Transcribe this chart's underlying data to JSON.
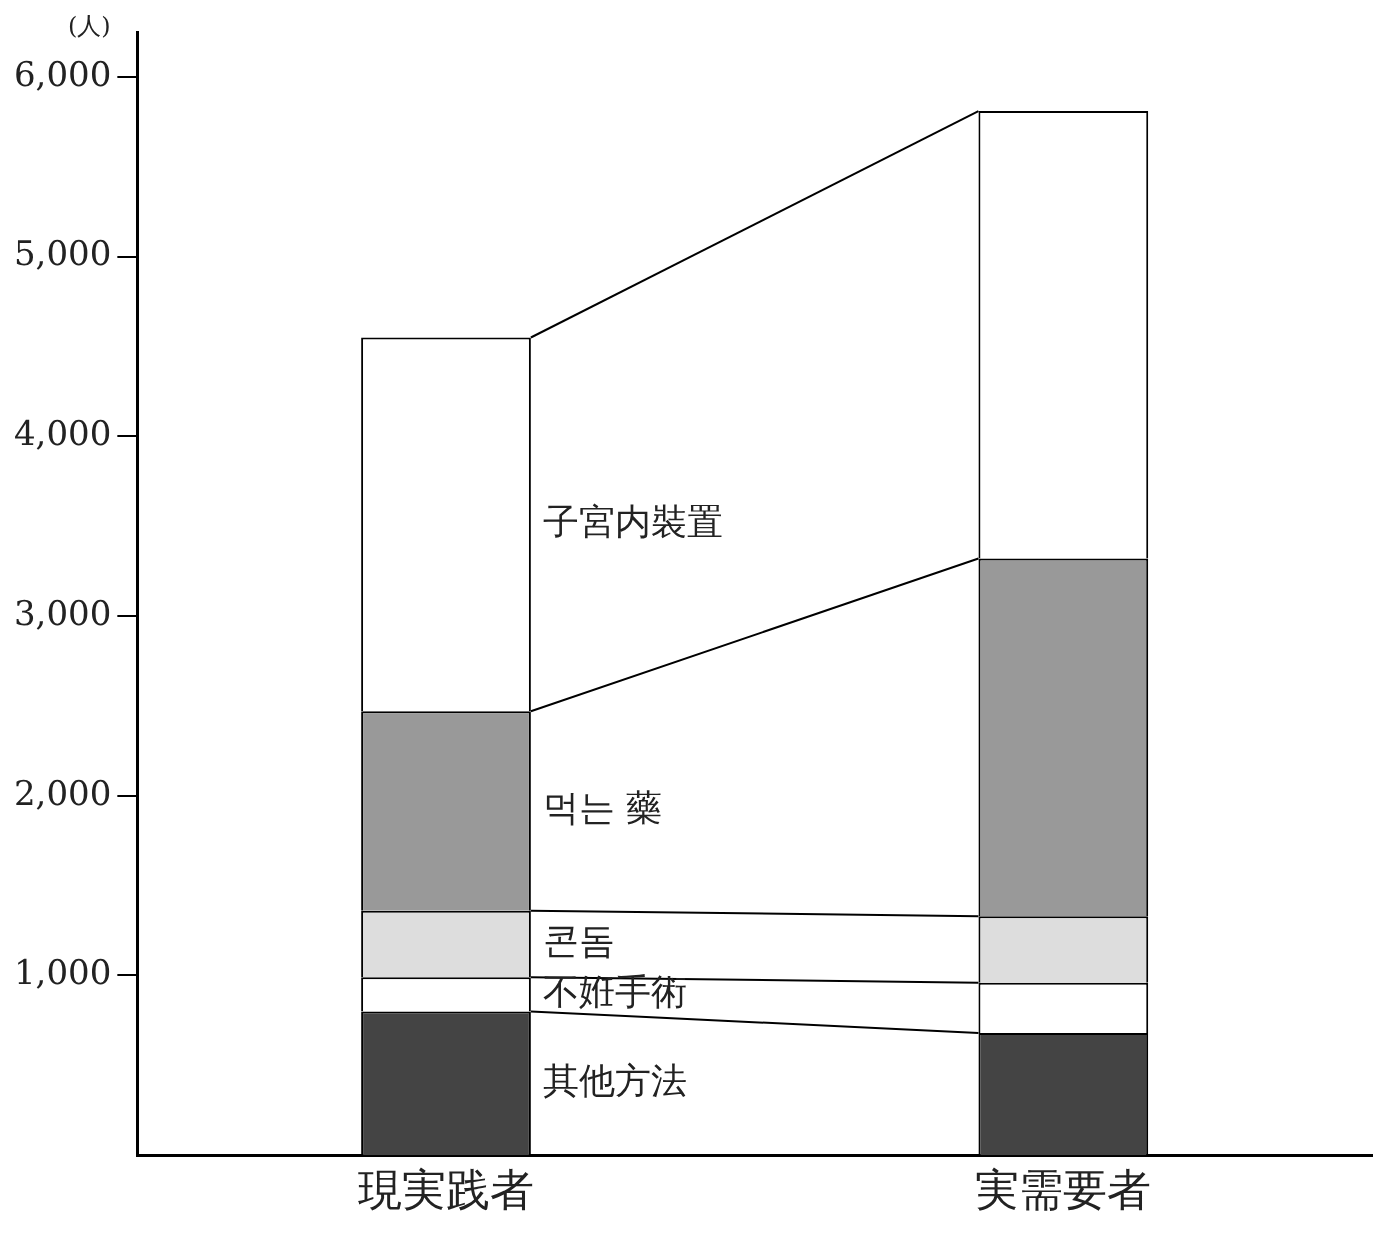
{
  "chart_data": {
    "type": "bar",
    "stacked": true,
    "ylabel": "(人)",
    "categories": [
      "現実践者",
      "実需要者"
    ],
    "series": [
      {
        "name": "其他方法",
        "color": "#444444",
        "values": [
          800,
          680
        ]
      },
      {
        "name": "不姙手術",
        "color": "#ffffff",
        "values": [
          190,
          280
        ]
      },
      {
        "name": "콘돔",
        "color": "#dddddd",
        "values": [
          370,
          370
        ]
      },
      {
        "name": "먹는 藥",
        "color": "#999999",
        "values": [
          1110,
          1990
        ]
      },
      {
        "name": "子宮内裝置",
        "color": "#ffffff",
        "values": [
          2080,
          2490
        ]
      }
    ],
    "ylim": [
      0,
      6250
    ],
    "yticks": [
      {
        "value": 1000,
        "label": "1,000"
      },
      {
        "value": 2000,
        "label": "2,000"
      },
      {
        "value": 3000,
        "label": "3,000"
      },
      {
        "value": 4000,
        "label": "4,000"
      },
      {
        "value": 5000,
        "label": "5,000"
      },
      {
        "value": 6000,
        "label": "6,000"
      }
    ],
    "grid": false,
    "legend": false
  }
}
